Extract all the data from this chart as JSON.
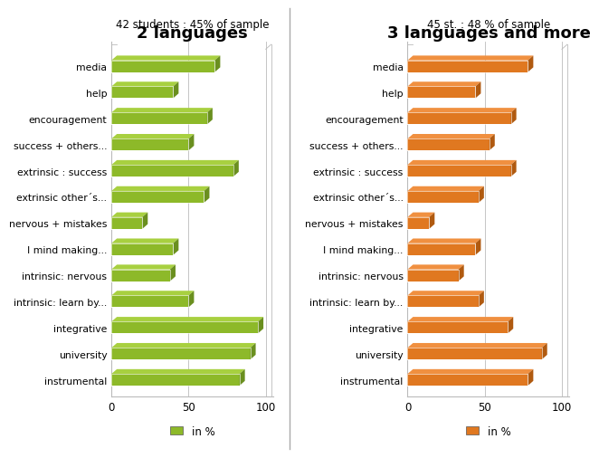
{
  "left_title": "2 languages",
  "left_subtitle": "42 students : 45% of sample",
  "right_title": "3 languages and more",
  "right_subtitle": "45 st. : 48 % of sample",
  "categories": [
    "media",
    "help",
    "encouragement",
    "success + others...",
    "extrinsic : success",
    "extrinsic other´s...",
    "nervous + mistakes",
    "I mind making...",
    "intrinsic: nervous",
    "intrinsic: learn by...",
    "integrative",
    "university",
    "instrumental"
  ],
  "left_values": [
    67,
    40,
    62,
    50,
    79,
    60,
    20,
    40,
    38,
    50,
    95,
    90,
    83
  ],
  "right_values": [
    78,
    44,
    67,
    53,
    67,
    46,
    14,
    44,
    33,
    46,
    65,
    87,
    78
  ],
  "left_color": "#8DB929",
  "left_color_top": "#A8D040",
  "left_color_side": "#6A8F1F",
  "right_color": "#E07820",
  "right_color_top": "#F09040",
  "right_color_side": "#B05A10",
  "background_color": "#FFFFFF",
  "xlim": [
    0,
    105
  ],
  "xticks": [
    0,
    50,
    100
  ],
  "legend_label": "in %"
}
